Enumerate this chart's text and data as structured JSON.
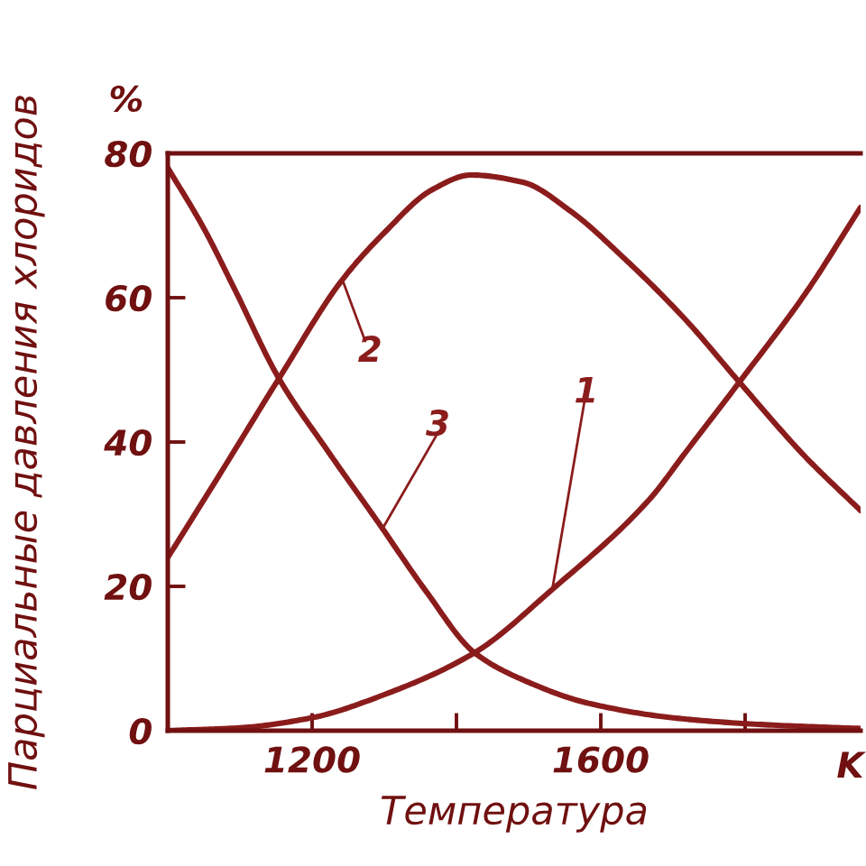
{
  "chart_data": {
    "type": "line",
    "xlabel": "Температура",
    "ylabel": "Парциальные давления хлоридов",
    "annotations": [
      "%",
      "K"
    ],
    "xlim": [
      1000,
      1960
    ],
    "ylim": [
      0,
      80
    ],
    "xticks": [
      1200,
      {
        "value": 1400,
        "label": null
      },
      1600,
      {
        "value": 1800,
        "label": null
      }
    ],
    "yticks": [
      0,
      20,
      40,
      60,
      80
    ],
    "line_style": "solid",
    "series": [
      {
        "name": "1",
        "color": "#8b1c1c",
        "x": [
          1000,
          1100,
          1200,
          1300,
          1425,
          1533,
          1667,
          1717,
          1792,
          1883,
          1960
        ],
        "values": [
          0,
          0.4,
          1.8,
          5,
          10.8,
          19.6,
          32,
          38.5,
          48.3,
          60.5,
          72.5
        ]
      },
      {
        "name": "2",
        "color": "#8b1c1c",
        "x": [
          1000,
          1075,
          1154,
          1242,
          1300,
          1367,
          1420,
          1492,
          1558,
          1633,
          1717,
          1792,
          1883,
          1960
        ],
        "values": [
          24,
          36,
          48.8,
          62.5,
          69,
          75,
          77,
          76,
          72,
          65.4,
          57,
          48.3,
          38,
          30.5
        ]
      },
      {
        "name": "3",
        "color": "#8b1c1c",
        "x": [
          1000,
          1050,
          1092,
          1154,
          1220,
          1292,
          1358,
          1425,
          1500,
          1583,
          1708,
          1833,
          1960
        ],
        "values": [
          78,
          69.6,
          61.3,
          48.8,
          39,
          28.8,
          19.3,
          10.8,
          6.7,
          3.8,
          1.7,
          0.8,
          0.3
        ]
      }
    ]
  }
}
